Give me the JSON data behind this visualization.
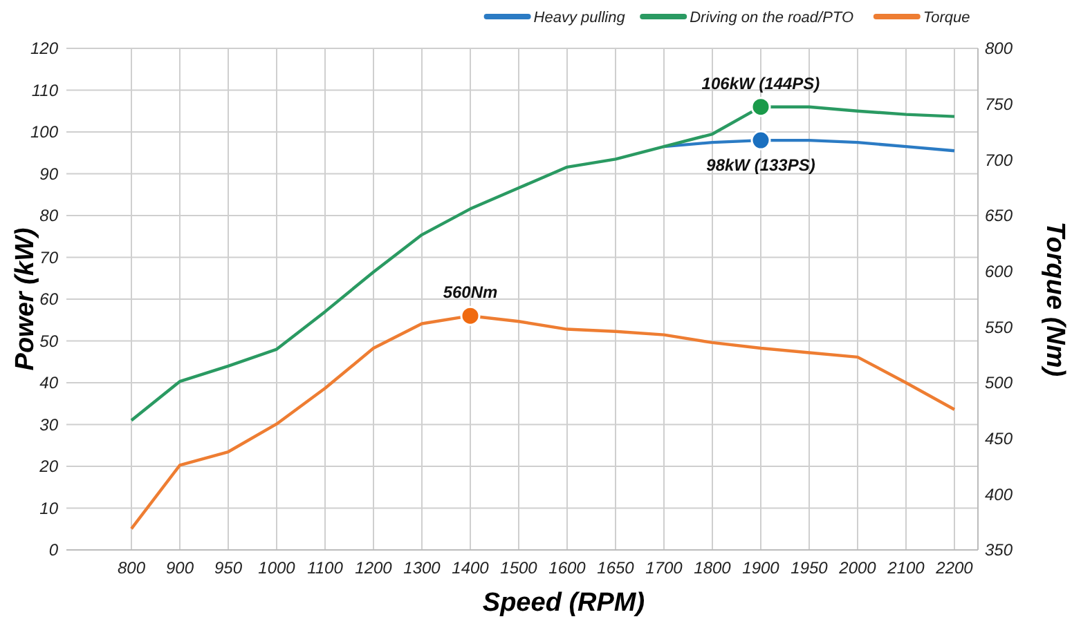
{
  "chart_data": {
    "type": "line",
    "xlabel": "Speed (RPM)",
    "ylabel": "Power (kW)",
    "y2label": "Torque (Nm)",
    "categories": [
      "800",
      "900",
      "950",
      "1000",
      "1100",
      "1200",
      "1300",
      "1400",
      "1500",
      "1600",
      "1650",
      "1700",
      "1800",
      "1900",
      "1950",
      "2000",
      "2100",
      "2200"
    ],
    "series": [
      {
        "name": "Heavy pulling",
        "color": "#2b7bc4",
        "values": [
          null,
          null,
          null,
          null,
          null,
          null,
          null,
          null,
          null,
          null,
          null,
          96.5,
          97.5,
          98,
          98,
          97.5,
          96.5,
          95.5
        ]
      },
      {
        "name": "Driving on the road/PTO",
        "color": "#2a9a62",
        "values": [
          31,
          40.3,
          44,
          48,
          57,
          66.5,
          75.4,
          81.6,
          86.6,
          91.6,
          93.5,
          96.5,
          99.5,
          106,
          106,
          105,
          104.2,
          103.7
        ]
      },
      {
        "name": "Torque",
        "color": "#ee7d32",
        "axis": "y2",
        "values": [
          369,
          426,
          438,
          463,
          495,
          531,
          553,
          560,
          555,
          548,
          546,
          543,
          536,
          531,
          527,
          523,
          500,
          476
        ]
      },
      {
        "type": "scatter",
        "color": "#1a9a4a",
        "marker": "circle",
        "values": [
          null,
          null,
          null,
          null,
          null,
          null,
          null,
          null,
          null,
          null,
          null,
          null,
          null,
          106,
          null,
          null,
          null,
          null
        ]
      },
      {
        "type": "scatter",
        "color": "#1a6fbf",
        "marker": "circle",
        "values": [
          null,
          null,
          null,
          null,
          null,
          null,
          null,
          null,
          null,
          null,
          null,
          null,
          null,
          98,
          null,
          null,
          null,
          null
        ]
      },
      {
        "type": "scatter",
        "color": "#f06a10",
        "marker": "circle",
        "axis": "y2",
        "values": [
          null,
          null,
          null,
          null,
          null,
          null,
          null,
          560,
          null,
          null,
          null,
          null,
          null,
          null,
          null,
          null,
          null,
          null
        ]
      }
    ],
    "ylim": [
      0,
      120
    ],
    "yticks": [
      0,
      10,
      20,
      30,
      40,
      50,
      60,
      70,
      80,
      90,
      100,
      110,
      120
    ],
    "y2lim": [
      350,
      800
    ],
    "y2ticks": [
      350,
      400,
      450,
      500,
      550,
      600,
      650,
      700,
      750,
      800
    ],
    "annotations": [
      "106kW (144PS)",
      "98kW (133PS)",
      "560Nm"
    ],
    "grid": true,
    "legend": "top right",
    "marker": "none",
    "line_style": "solid"
  }
}
